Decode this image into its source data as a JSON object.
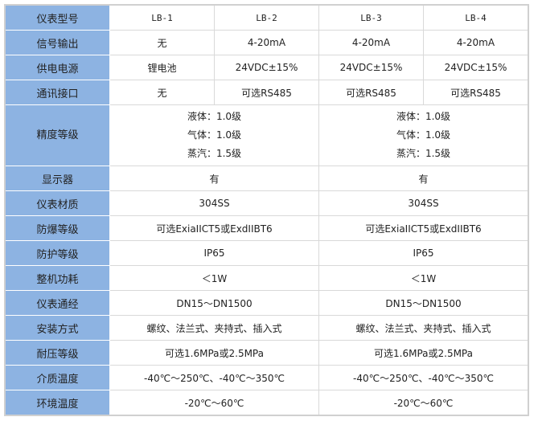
{
  "header": {
    "label": "仪表型号",
    "models": [
      "LB-1",
      "LB-2",
      "LB-3",
      "LB-4"
    ]
  },
  "rows4": [
    {
      "label": "信号输出",
      "values": [
        "无",
        "4-20mA",
        "4-20mA",
        "4-20mA"
      ]
    },
    {
      "label": "供电电源",
      "values": [
        "锂电池",
        "24VDC±15%",
        "24VDC±15%",
        "24VDC±15%"
      ]
    },
    {
      "label": "通讯接口",
      "values": [
        "无",
        "可选RS485",
        "可选RS485",
        "可选RS485"
      ]
    }
  ],
  "precision": {
    "label": "精度等级",
    "lines": [
      "液体：1.0级",
      "气体：1.0级",
      "蒸汽：1.5级"
    ]
  },
  "rows2": [
    {
      "label": "显示器",
      "value": "有"
    },
    {
      "label": "仪表材质",
      "value": "304SS"
    },
    {
      "label": "防爆等级",
      "value": "可选ExiaIICT5或ExdIIBT6"
    },
    {
      "label": "防护等级",
      "value": "IP65"
    },
    {
      "label": "整机功耗",
      "value": "＜1W"
    },
    {
      "label": "仪表通经",
      "value": "DN15～DN1500"
    },
    {
      "label": "安装方式",
      "value": "螺纹、法兰式、夹持式、插入式"
    },
    {
      "label": "耐压等级",
      "value": "可选1.6MPa或2.5MPa"
    },
    {
      "label": "介质温度",
      "value": "-40℃～250℃、-40℃～350℃"
    },
    {
      "label": "环境温度",
      "value": "-20℃～60℃"
    }
  ]
}
